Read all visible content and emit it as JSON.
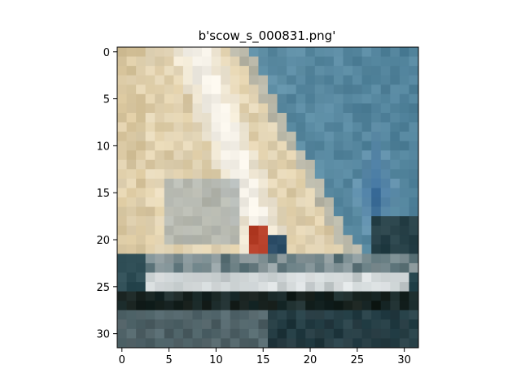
{
  "figure": {
    "title": "b'scow_s_000831.png'"
  },
  "image": {
    "description_name": "pixelated sailboat photo",
    "grid_size": [
      32,
      32
    ],
    "palette": {
      "sail_light": "#e6d9bc",
      "sail_tan": "#d7c49b",
      "sail_white": "#f3efe6",
      "sky_blue": "#6a98ad",
      "sky_deep": "#4d7f98",
      "spinnaker_blue": "#3d6f9c",
      "hull_white": "#dfe3e4",
      "water_dark": "#1f3036",
      "water_teal": "#2b4a52",
      "deck_red": "#b8412a",
      "grey_sail": "#a4aeb0",
      "dark_hull": "#141c18"
    }
  },
  "axes": {
    "x_ticks": [
      "0",
      "5",
      "10",
      "15",
      "20",
      "25",
      "30"
    ],
    "y_ticks": [
      "0",
      "5",
      "10",
      "15",
      "20",
      "25",
      "30"
    ],
    "x_tick_values": [
      0,
      5,
      10,
      15,
      20,
      25,
      30
    ],
    "y_tick_values": [
      0,
      5,
      10,
      15,
      20,
      25,
      30
    ],
    "xlim": [
      -0.5,
      31.5
    ],
    "ylim": [
      31.5,
      -0.5
    ]
  }
}
